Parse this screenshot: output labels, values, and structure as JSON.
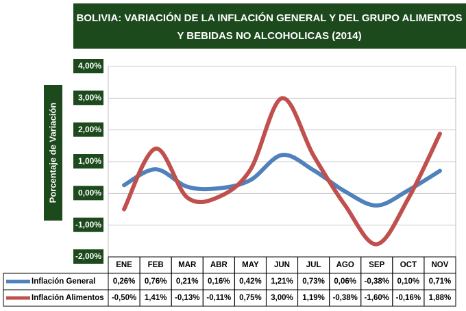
{
  "chart_data": {
    "type": "line",
    "title": "BOLIVIA: VARIACIÓN DE LA INFLACIÓN GENERAL Y DEL GRUPO ALIMENTOS",
    "subtitle": "Y BEBIDAS NO ALCOHOLICAS  (2014)",
    "y_label": "Porcentaje de Variación",
    "categories": [
      "ENE",
      "FEB",
      "MAR",
      "ABR",
      "MAY",
      "JUN",
      "JUL",
      "AGO",
      "SEP",
      "OCT",
      "NOV"
    ],
    "series": [
      {
        "name": "Inflación General",
        "color": "#4f81bd",
        "values": [
          0.26,
          0.76,
          0.21,
          0.16,
          0.42,
          1.21,
          0.73,
          0.06,
          -0.38,
          0.1,
          0.71
        ],
        "value_labels": [
          "0,26%",
          "0,76%",
          "0,21%",
          "0,16%",
          "0,42%",
          "1,21%",
          "0,73%",
          "0,06%",
          "-0,38%",
          "0,10%",
          "0,71%"
        ]
      },
      {
        "name": "Inflación Alimentos",
        "color": "#c0504d",
        "values": [
          -0.5,
          1.41,
          -0.13,
          -0.11,
          0.75,
          3.0,
          1.19,
          -0.38,
          -1.6,
          -0.16,
          1.88
        ],
        "value_labels": [
          "-0,50%",
          "1,41%",
          "-0,13%",
          "-0,11%",
          "0,75%",
          "3,00%",
          "1,19%",
          "-0,38%",
          "-1,60%",
          "-0,16%",
          "1,88%"
        ]
      }
    ],
    "ylim": [
      -2,
      4
    ],
    "yticks": [
      {
        "value": 4,
        "label": "4,00%"
      },
      {
        "value": 3,
        "label": "3,00%"
      },
      {
        "value": 2,
        "label": "2,00%"
      },
      {
        "value": 1,
        "label": "1,00%"
      },
      {
        "value": 0,
        "label": "0,00%"
      },
      {
        "value": -1,
        "label": "-1,00%"
      },
      {
        "value": -2,
        "label": "-2,00%"
      }
    ],
    "grid": true
  }
}
